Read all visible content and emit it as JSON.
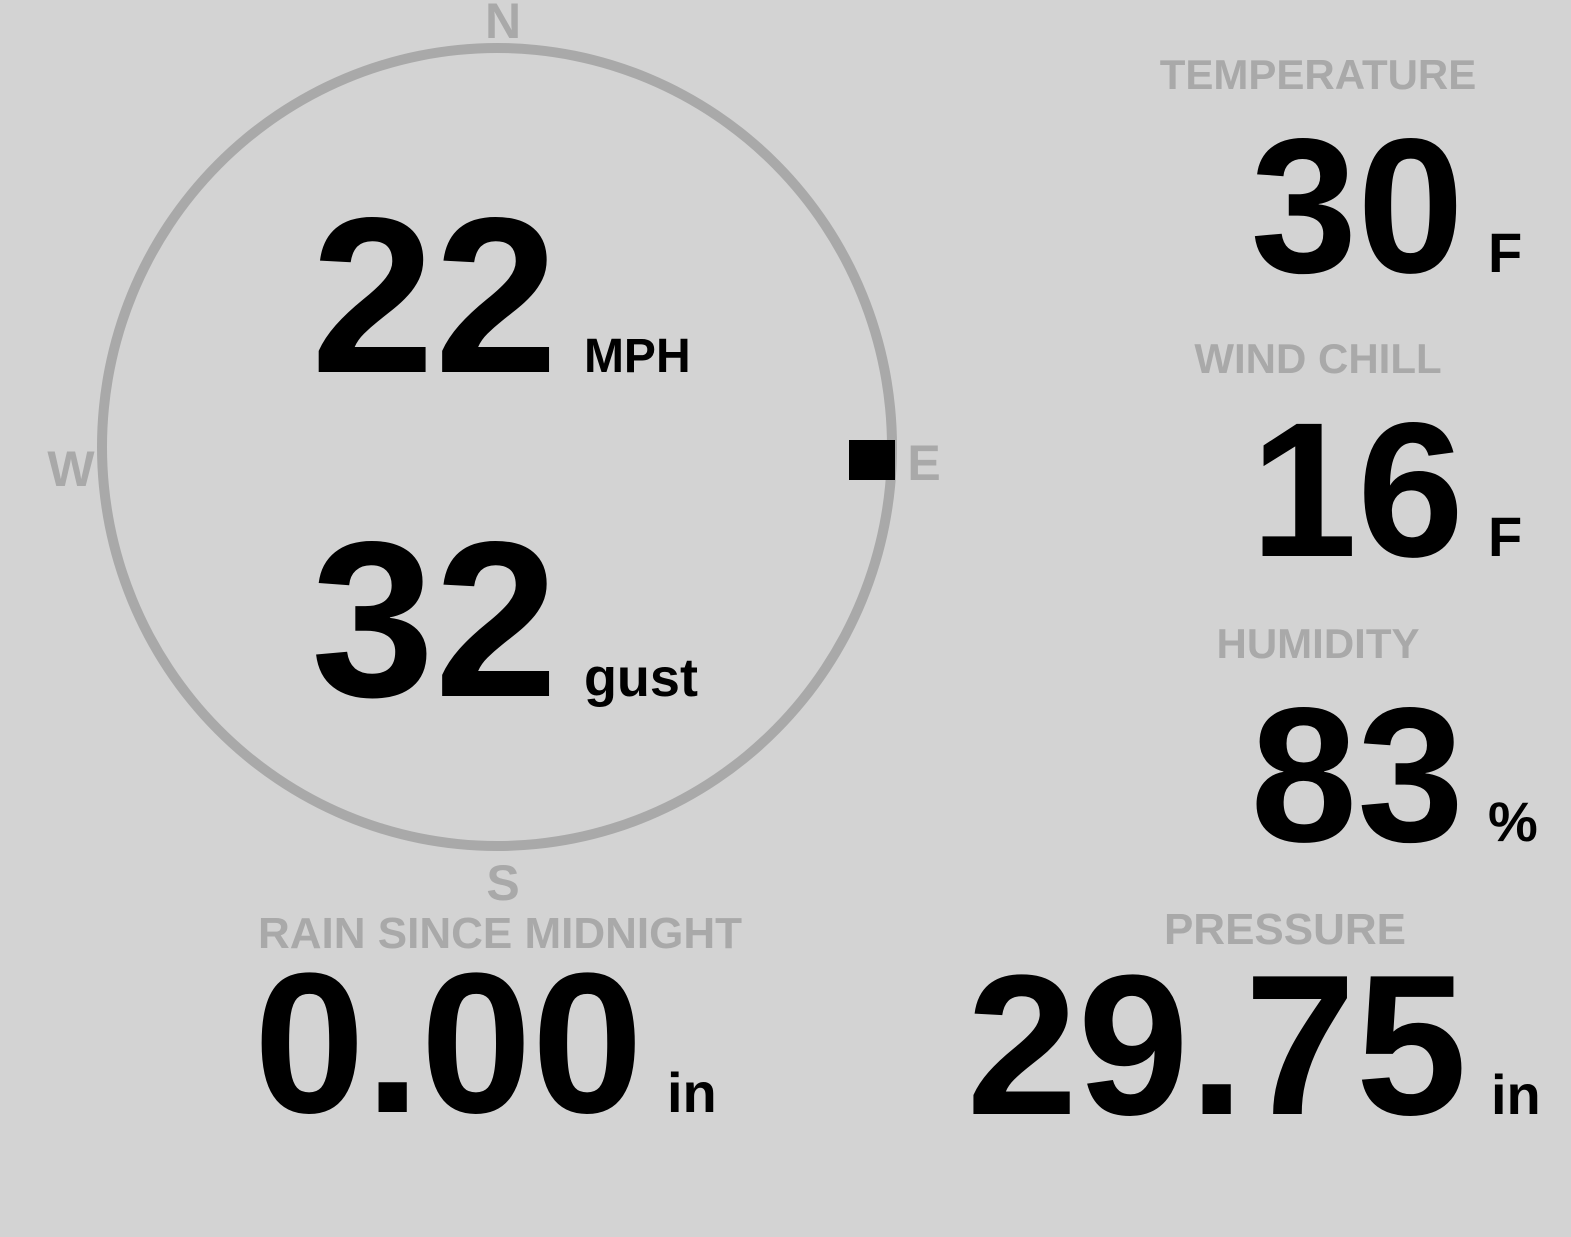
{
  "colors": {
    "background": "#d3d3d3",
    "muted_gray": "#a9a9a9",
    "value_black": "#000000"
  },
  "compass": {
    "directions": {
      "north": "N",
      "east": "E",
      "south": "S",
      "west": "W"
    },
    "wind_direction_deg": 92
  },
  "wind": {
    "speed": "22",
    "speed_unit": "MPH",
    "gust": "32",
    "gust_unit": "gust"
  },
  "metrics": {
    "temperature": {
      "label": "TEMPERATURE",
      "value": "30",
      "unit": "F"
    },
    "wind_chill": {
      "label": "WIND CHILL",
      "value": "16",
      "unit": "F"
    },
    "humidity": {
      "label": "HUMIDITY",
      "value": "83",
      "unit": "%"
    },
    "rain": {
      "label": "RAIN SINCE MIDNIGHT",
      "value": "0.00",
      "unit": "in"
    },
    "pressure": {
      "label": "PRESSURE",
      "value": "29.75",
      "unit": "in"
    }
  }
}
